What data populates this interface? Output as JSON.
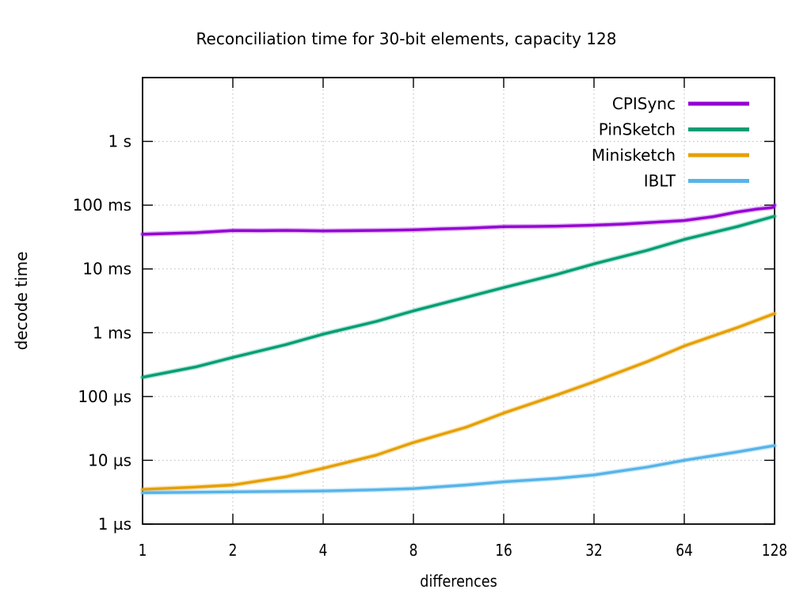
{
  "chart_data": {
    "type": "line",
    "title": "Reconciliation time for 30-bit elements, capacity 128",
    "xlabel": "differences",
    "ylabel": "decode time",
    "x_scale": "log2",
    "y_scale": "log10",
    "grid": true,
    "legend_position": "top-right-inside",
    "x_range": [
      1,
      128
    ],
    "y_range_us": [
      1,
      10000000
    ],
    "x_ticks": [
      1,
      2,
      4,
      8,
      16,
      32,
      64,
      128
    ],
    "y_ticks": [
      {
        "value_us": 1,
        "label": "1 µs"
      },
      {
        "value_us": 10,
        "label": "10 µs"
      },
      {
        "value_us": 100,
        "label": "100 µs"
      },
      {
        "value_us": 1000,
        "label": "1 ms"
      },
      {
        "value_us": 10000,
        "label": "10 ms"
      },
      {
        "value_us": 100000,
        "label": "100 ms"
      },
      {
        "value_us": 1000000,
        "label": "1 s"
      }
    ],
    "series": [
      {
        "name": "CPISync",
        "color": "#9400d3",
        "points_x_differences_y_us": [
          [
            1,
            35000
          ],
          [
            1.5,
            37000
          ],
          [
            2,
            40000
          ],
          [
            2.5,
            39800
          ],
          [
            3,
            40200
          ],
          [
            4,
            39500
          ],
          [
            5,
            39800
          ],
          [
            6,
            40200
          ],
          [
            8,
            41000
          ],
          [
            10,
            42500
          ],
          [
            12,
            43500
          ],
          [
            16,
            46000
          ],
          [
            20,
            46300
          ],
          [
            24,
            46800
          ],
          [
            32,
            48500
          ],
          [
            40,
            50500
          ],
          [
            48,
            53000
          ],
          [
            64,
            57500
          ],
          [
            80,
            66000
          ],
          [
            96,
            78000
          ],
          [
            112,
            87000
          ],
          [
            124,
            91000
          ],
          [
            127,
            93000
          ],
          [
            128,
            100000
          ]
        ]
      },
      {
        "name": "PinSketch",
        "color": "#009e73",
        "points_x_differences_y_us": [
          [
            1,
            200
          ],
          [
            1.5,
            290
          ],
          [
            2,
            410
          ],
          [
            3,
            650
          ],
          [
            4,
            950
          ],
          [
            6,
            1500
          ],
          [
            8,
            2200
          ],
          [
            12,
            3600
          ],
          [
            16,
            5100
          ],
          [
            24,
            8200
          ],
          [
            32,
            12000
          ],
          [
            48,
            19500
          ],
          [
            64,
            29000
          ],
          [
            96,
            46000
          ],
          [
            128,
            67000
          ]
        ]
      },
      {
        "name": "Minisketch",
        "color": "#e69f00",
        "points_x_differences_y_us": [
          [
            1,
            3.5
          ],
          [
            1.5,
            3.8
          ],
          [
            2,
            4.1
          ],
          [
            3,
            5.5
          ],
          [
            4,
            7.5
          ],
          [
            6,
            12
          ],
          [
            8,
            19
          ],
          [
            12,
            33
          ],
          [
            16,
            55
          ],
          [
            24,
            105
          ],
          [
            32,
            170
          ],
          [
            48,
            350
          ],
          [
            64,
            620
          ],
          [
            96,
            1200
          ],
          [
            128,
            2000
          ]
        ]
      },
      {
        "name": "IBLT",
        "color": "#56b4e9",
        "points_x_differences_y_us": [
          [
            1,
            3.1
          ],
          [
            2,
            3.2
          ],
          [
            4,
            3.3
          ],
          [
            6,
            3.45
          ],
          [
            8,
            3.6
          ],
          [
            12,
            4.1
          ],
          [
            16,
            4.6
          ],
          [
            24,
            5.2
          ],
          [
            32,
            5.9
          ],
          [
            48,
            7.8
          ],
          [
            64,
            10
          ],
          [
            96,
            13.5
          ],
          [
            128,
            17
          ]
        ]
      }
    ]
  }
}
